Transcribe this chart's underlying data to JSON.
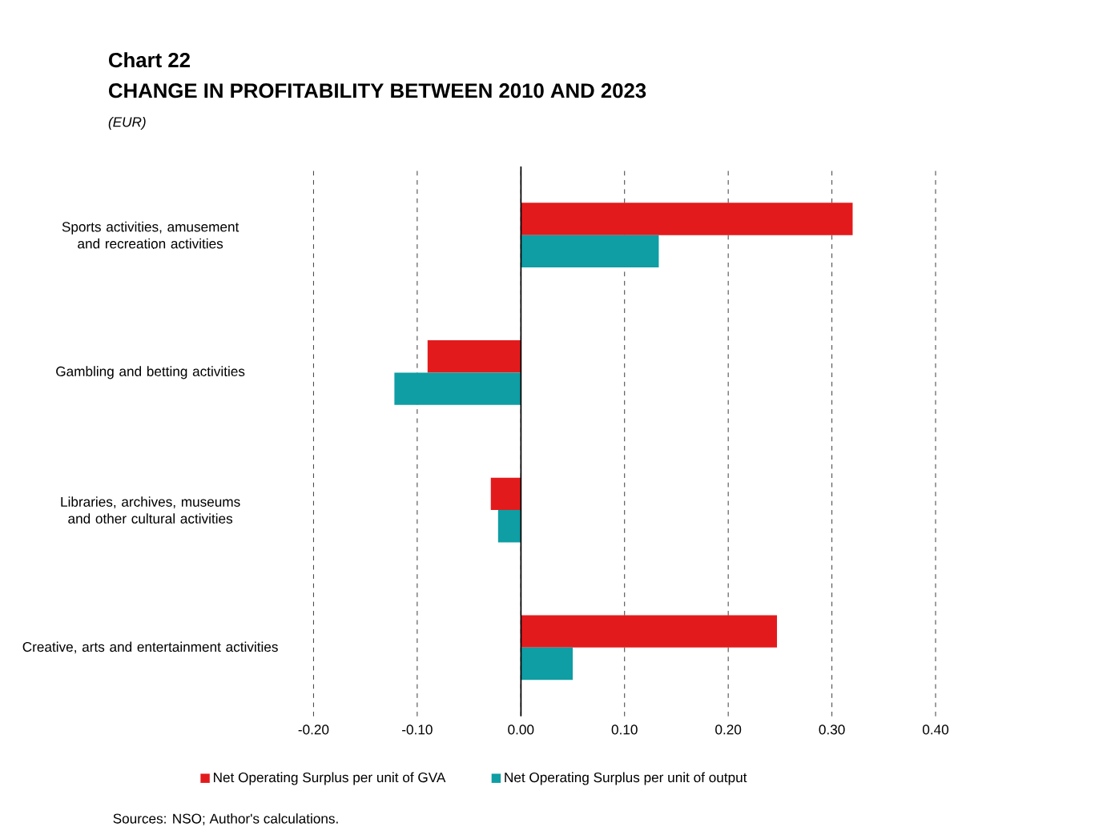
{
  "chart_data": {
    "type": "bar",
    "orientation": "horizontal",
    "annotations": [
      "Chart 22",
      "Sources: NSO; Author's calculations."
    ],
    "title": "CHANGE IN PROFITABILITY BETWEEN 2010 AND 2023",
    "subtitle": "(EUR)",
    "categories": [
      "Sports activities, amusement and recreation activities",
      "Gambling and betting activities",
      "Libraries, archives, museums and other cultural activities",
      "Creative, arts and entertainment activities"
    ],
    "series": [
      {
        "name": "Net Operating Surplus per unit of GVA",
        "color": "#e31a1c",
        "values": [
          0.32,
          -0.09,
          -0.029,
          0.247
        ]
      },
      {
        "name": "Net Operating Surplus per unit of output",
        "color": "#0e9ea3",
        "values": [
          0.133,
          -0.122,
          -0.022,
          0.05
        ]
      }
    ],
    "xlim": [
      -0.2,
      0.4
    ],
    "xticks": [
      {
        "value": -0.2,
        "label": "-0.20"
      },
      {
        "value": -0.1,
        "label": "-0.10"
      },
      {
        "value": 0,
        "label": "0.00"
      },
      {
        "value": 0.1,
        "label": "0.10"
      },
      {
        "value": 0.2,
        "label": "0.20"
      },
      {
        "value": 0.3,
        "label": "0.30"
      },
      {
        "value": 0.4,
        "label": "0.40"
      }
    ],
    "grid": "x",
    "legend": "bottom"
  }
}
